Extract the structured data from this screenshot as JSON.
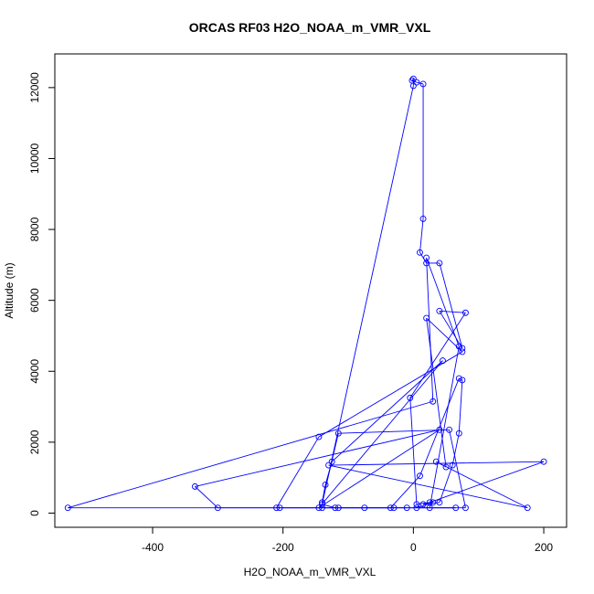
{
  "chart_data": {
    "type": "line",
    "title": "ORCAS RF03 H2O_NOAA_m_VMR_VXL",
    "xlabel": "H2O_NOAA_m_VMR_VXL",
    "ylabel": "Altitude (m)",
    "xlim": [
      -550,
      235
    ],
    "ylim": [
      -400,
      12950
    ],
    "xticks": [
      -400,
      -200,
      0,
      200
    ],
    "yticks": [
      0,
      2000,
      4000,
      6000,
      8000,
      10000,
      12000
    ],
    "grid": false,
    "legend": "none",
    "series": [
      {
        "color": "#0000ff",
        "marker": "open-circle",
        "points": [
          [
            -10,
            150
          ],
          [
            -30,
            150
          ],
          [
            -115,
            150
          ],
          [
            -140,
            150
          ],
          [
            -205,
            150
          ],
          [
            -300,
            150
          ],
          [
            -335,
            750
          ],
          [
            40,
            2350
          ],
          [
            -145,
            150
          ],
          [
            45,
            4300
          ],
          [
            -125,
            1450
          ],
          [
            -135,
            800
          ],
          [
            -140,
            300
          ],
          [
            -115,
            2250
          ],
          [
            55,
            2350
          ],
          [
            80,
            150
          ],
          [
            -210,
            150
          ],
          [
            -145,
            2150
          ],
          [
            75,
            4550
          ],
          [
            20,
            5500
          ],
          [
            50,
            1300
          ],
          [
            35,
            1450
          ],
          [
            175,
            150
          ],
          [
            -130,
            1350
          ],
          [
            200,
            1450
          ],
          [
            25,
            300
          ],
          [
            5,
            250
          ],
          [
            -5,
            3250
          ],
          [
            80,
            5650
          ],
          [
            40,
            5700
          ],
          [
            75,
            4650
          ],
          [
            40,
            7050
          ],
          [
            20,
            7050
          ],
          [
            10,
            7350
          ],
          [
            15,
            8300
          ],
          [
            15,
            12100
          ],
          [
            5,
            12150
          ],
          [
            -2,
            12200
          ],
          [
            0,
            12250
          ],
          [
            0,
            12050
          ],
          [
            -140,
            250
          ],
          [
            -120,
            150
          ],
          [
            -75,
            150
          ],
          [
            -35,
            150
          ],
          [
            10,
            1050
          ],
          [
            70,
            3800
          ],
          [
            75,
            3750
          ],
          [
            70,
            2250
          ],
          [
            60,
            1350
          ],
          [
            40,
            300
          ],
          [
            15,
            250
          ],
          [
            30,
            300
          ],
          [
            5,
            150
          ],
          [
            65,
            150
          ],
          [
            -530,
            150
          ],
          [
            30,
            3150
          ],
          [
            20,
            7200
          ],
          [
            70,
            4700
          ],
          [
            25,
            150
          ]
        ]
      }
    ]
  }
}
